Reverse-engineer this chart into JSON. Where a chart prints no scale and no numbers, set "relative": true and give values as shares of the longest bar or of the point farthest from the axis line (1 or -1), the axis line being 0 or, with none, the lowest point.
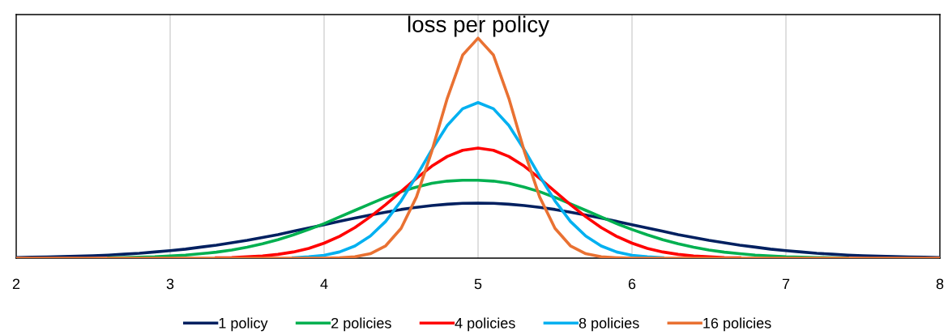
{
  "chart_data": {
    "type": "line",
    "title": "loss per policy",
    "relative": true,
    "x": [
      2,
      2.1,
      2.2,
      2.3,
      2.4,
      2.5,
      2.6,
      2.7,
      2.8,
      2.9,
      3,
      3.1,
      3.2,
      3.3,
      3.4,
      3.5,
      3.6,
      3.7,
      3.8,
      3.9,
      4,
      4.1,
      4.2,
      4.3,
      4.4,
      4.5,
      4.6,
      4.7,
      4.8,
      4.9,
      5,
      5.1,
      5.2,
      5.3,
      5.4,
      5.5,
      5.6,
      5.7,
      5.8,
      5.9,
      6,
      6.1,
      6.2,
      6.3,
      6.4,
      6.5,
      6.6,
      6.7,
      6.8,
      6.9,
      7,
      7.1,
      7.2,
      7.3,
      7.4,
      7.5,
      7.6,
      7.7,
      7.8,
      7.9,
      8
    ],
    "xlim": [
      2,
      8
    ],
    "xticks": [
      2,
      3,
      4,
      5,
      6,
      7,
      8
    ],
    "grid": "x",
    "legend": "bottom",
    "marker": "none",
    "line_style": "solid",
    "series": [
      {
        "name": "1 policy",
        "color": "#002060",
        "values": [
          0.003,
          0.004,
          0.005,
          0.007,
          0.009,
          0.011,
          0.014,
          0.018,
          0.022,
          0.028,
          0.034,
          0.041,
          0.05,
          0.059,
          0.07,
          0.081,
          0.094,
          0.107,
          0.122,
          0.137,
          0.152,
          0.167,
          0.182,
          0.196,
          0.209,
          0.221,
          0.231,
          0.239,
          0.245,
          0.249,
          0.25,
          0.249,
          0.245,
          0.239,
          0.231,
          0.221,
          0.209,
          0.196,
          0.182,
          0.167,
          0.152,
          0.137,
          0.122,
          0.107,
          0.094,
          0.081,
          0.07,
          0.059,
          0.05,
          0.041,
          0.034,
          0.028,
          0.022,
          0.018,
          0.014,
          0.011,
          0.009,
          0.007,
          0.005,
          0.004,
          0.003
        ]
      },
      {
        "name": "2 policies",
        "color": "#00b050",
        "values": [
          null,
          null,
          null,
          null,
          null,
          null,
          0.002,
          0.003,
          0.004,
          0.006,
          0.01,
          0.014,
          0.02,
          0.027,
          0.037,
          0.05,
          0.065,
          0.084,
          0.106,
          0.13,
          0.157,
          0.187,
          0.217,
          0.247,
          0.276,
          0.302,
          0.323,
          0.34,
          0.35,
          0.354,
          0.354,
          0.35,
          0.34,
          0.323,
          0.302,
          0.276,
          0.247,
          0.217,
          0.187,
          0.157,
          0.13,
          0.106,
          0.084,
          0.065,
          0.05,
          0.037,
          0.027,
          0.02,
          0.014,
          0.01,
          0.006,
          0.004,
          0.003,
          0.002,
          0.001,
          null,
          null,
          null,
          null,
          null,
          null
        ]
      },
      {
        "name": "4 policies",
        "color": "#ff0000",
        "values": [
          null,
          null,
          null,
          null,
          null,
          null,
          null,
          null,
          null,
          null,
          null,
          null,
          null,
          0.002,
          0.003,
          0.006,
          0.01,
          0.017,
          0.028,
          0.044,
          0.068,
          0.099,
          0.139,
          0.188,
          0.243,
          0.303,
          0.363,
          0.418,
          0.462,
          0.49,
          0.5,
          0.49,
          0.462,
          0.418,
          0.363,
          0.303,
          0.243,
          0.188,
          0.139,
          0.099,
          0.068,
          0.044,
          0.028,
          0.017,
          0.01,
          0.006,
          0.003,
          0.002,
          null,
          null,
          null,
          null,
          null,
          null,
          null,
          null,
          null,
          null,
          null,
          null,
          null
        ]
      },
      {
        "name": "8 policies",
        "color": "#00b0f0",
        "values": [
          null,
          null,
          null,
          null,
          null,
          null,
          null,
          null,
          null,
          null,
          null,
          null,
          null,
          null,
          null,
          null,
          null,
          null,
          0.002,
          0.006,
          0.013,
          0.028,
          0.055,
          0.1,
          0.167,
          0.26,
          0.373,
          0.493,
          0.603,
          0.679,
          0.707,
          0.679,
          0.603,
          0.493,
          0.373,
          0.26,
          0.167,
          0.1,
          0.055,
          0.028,
          0.013,
          0.006,
          0.002,
          null,
          null,
          null,
          null,
          null,
          null,
          null,
          null,
          null,
          null,
          null,
          null,
          null,
          null,
          null,
          null,
          null,
          null
        ]
      },
      {
        "name": "16 policies",
        "color": "#e97132",
        "values": [
          0,
          0,
          0,
          0,
          0,
          0,
          0,
          0,
          0,
          0,
          0,
          0,
          0,
          0,
          0,
          0,
          0,
          0,
          0,
          0,
          0,
          0.002,
          0.006,
          0.02,
          0.056,
          0.135,
          0.278,
          0.487,
          0.726,
          0.923,
          1,
          0.923,
          0.726,
          0.487,
          0.278,
          0.135,
          0.056,
          0.02,
          0.006,
          0.002,
          0,
          0,
          0,
          0,
          0,
          0,
          0,
          0,
          0,
          0,
          0,
          0,
          0,
          0,
          0,
          0,
          0,
          0,
          0,
          0,
          0
        ]
      }
    ]
  }
}
